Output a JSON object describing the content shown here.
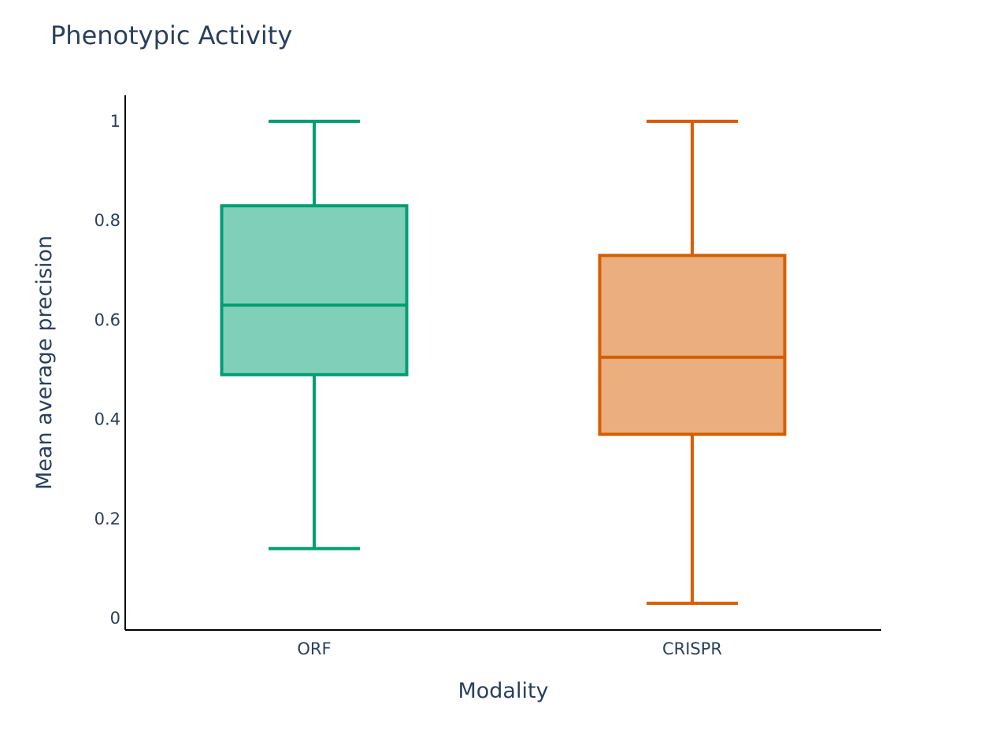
{
  "chart_data": {
    "type": "box",
    "title": "Phenotypic Activity",
    "xlabel": "Modality",
    "ylabel": "Mean average precision",
    "categories": [
      "ORF",
      "CRISPR"
    ],
    "series": [
      {
        "name": "ORF",
        "color": "#009e73",
        "fill": "#80cfb9",
        "min": 0.14,
        "q1": 0.49,
        "median": 0.63,
        "q3": 0.83,
        "max": 1.0
      },
      {
        "name": "CRISPR",
        "color": "#d55e00",
        "fill": "#eaae7f",
        "min": 0.03,
        "q1": 0.37,
        "median": 0.525,
        "q3": 0.73,
        "max": 1.0
      }
    ],
    "yticks": [
      0,
      0.2,
      0.4,
      0.6,
      0.8,
      1
    ],
    "ytick_labels": [
      "0",
      "0.2",
      "0.4",
      "0.6",
      "0.8",
      "1"
    ],
    "ylim": [
      -0.025,
      1.05
    ],
    "grid": false,
    "legend": "none"
  }
}
